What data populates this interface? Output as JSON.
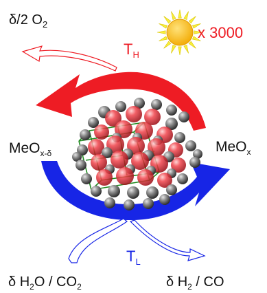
{
  "labels": {
    "oxygen_prefix": "δ/2 O",
    "oxygen_sub": "2",
    "solar_factor": "x 3000",
    "th_main": "T",
    "th_sub": "H",
    "tl_main": "T",
    "tl_sub": "L",
    "left_main": "MeO",
    "left_sub": "x-δ",
    "right_main": "MeO",
    "right_sub": "x",
    "input_a": "δ H",
    "input_a_sub": "2",
    "input_b": "O / CO",
    "input_b_sub": "2",
    "output_a": "δ H",
    "output_a_sub": "2",
    "output_b": " / CO"
  },
  "colors": {
    "red": "#ee1c24",
    "blue": "#1725e6",
    "sun_fill": "#f7c600",
    "sun_rays": "#f5f03a",
    "text": "#111111",
    "lattice": "#1f8a1f",
    "atom_gray": "#7a7a7a",
    "atom_red": "#e8323c"
  },
  "icons": {
    "sun": "sun-icon",
    "oxygen_release": "outline-arrow-up-left",
    "fuel_release": "outline-arrow-down-right",
    "oxidation_arrow": "red-curved-arrow-left",
    "reduction_arrow": "blue-curved-arrow-right",
    "crystal": "metal-oxide-crystal-lattice"
  }
}
